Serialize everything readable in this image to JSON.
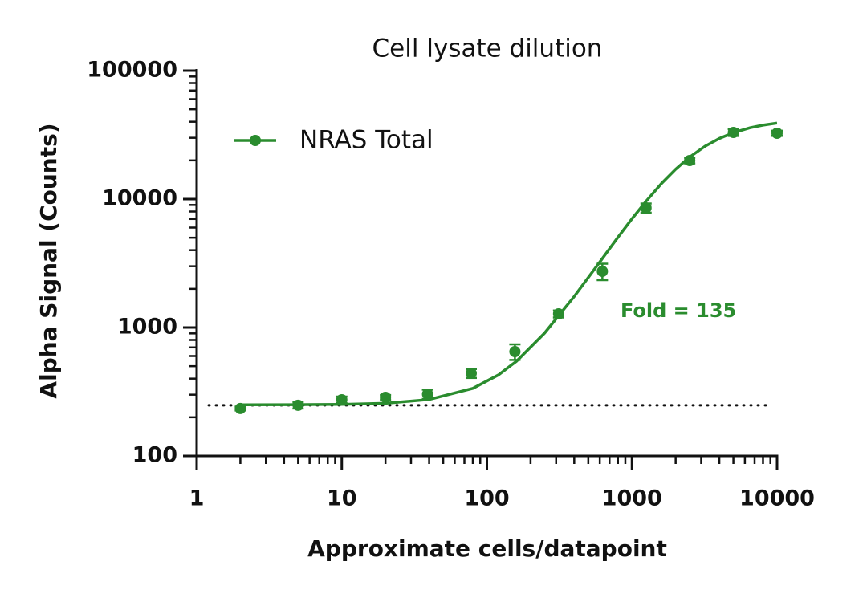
{
  "chart_data": {
    "type": "scatter",
    "title": "Cell lysate dilution",
    "xlabel": "Approximate cells/datapoint",
    "ylabel": "Alpha Signal (Counts)",
    "xscale": "log",
    "yscale": "log",
    "xlim": [
      1,
      10000
    ],
    "ylim": [
      100,
      100000
    ],
    "xticks": [
      1,
      10,
      100,
      1000,
      10000
    ],
    "yticks": [
      100,
      1000,
      10000,
      100000
    ],
    "xminorticks": [
      2,
      3,
      4,
      5,
      6,
      7,
      8,
      9,
      20,
      30,
      40,
      50,
      60,
      70,
      80,
      90,
      200,
      300,
      400,
      500,
      600,
      700,
      800,
      900,
      2000,
      3000,
      4000,
      5000,
      6000,
      7000,
      8000,
      9000
    ],
    "yminorticks": [
      200,
      300,
      400,
      500,
      600,
      700,
      800,
      900,
      2000,
      3000,
      4000,
      5000,
      6000,
      7000,
      8000,
      9000,
      20000,
      30000,
      40000,
      50000,
      60000,
      70000,
      80000,
      90000
    ],
    "legend": "upper left",
    "series": [
      {
        "name": "NRAS Total",
        "color": "#2a8c2e",
        "x": [
          2,
          5,
          10,
          20,
          39,
          78,
          156,
          312,
          625,
          1250,
          2500,
          5000,
          10000
        ],
        "values": [
          234,
          248,
          274,
          286,
          303,
          440,
          649,
          1277,
          2738,
          8535,
          19950,
          33000,
          32550
        ],
        "errors": [
          8,
          14,
          16,
          12,
          25,
          35,
          90,
          80,
          400,
          700,
          1000,
          2000,
          1500
        ]
      }
    ],
    "curve": {
      "x": [
        2,
        5,
        10,
        20,
        40,
        80,
        120,
        160,
        250,
        400,
        600,
        800,
        1000,
        1250,
        1600,
        2000,
        2500,
        3200,
        4000,
        5000,
        6500,
        8000,
        10000
      ],
      "values": [
        250,
        251,
        252,
        257,
        275,
        336,
        427,
        546,
        905,
        1745,
        3239,
        5034,
        7024,
        9625,
        13240,
        17090,
        21250,
        25840,
        29640,
        32880,
        35870,
        37650,
        39050
      ]
    },
    "baseline": 248,
    "annotation": "Fold = 135"
  }
}
